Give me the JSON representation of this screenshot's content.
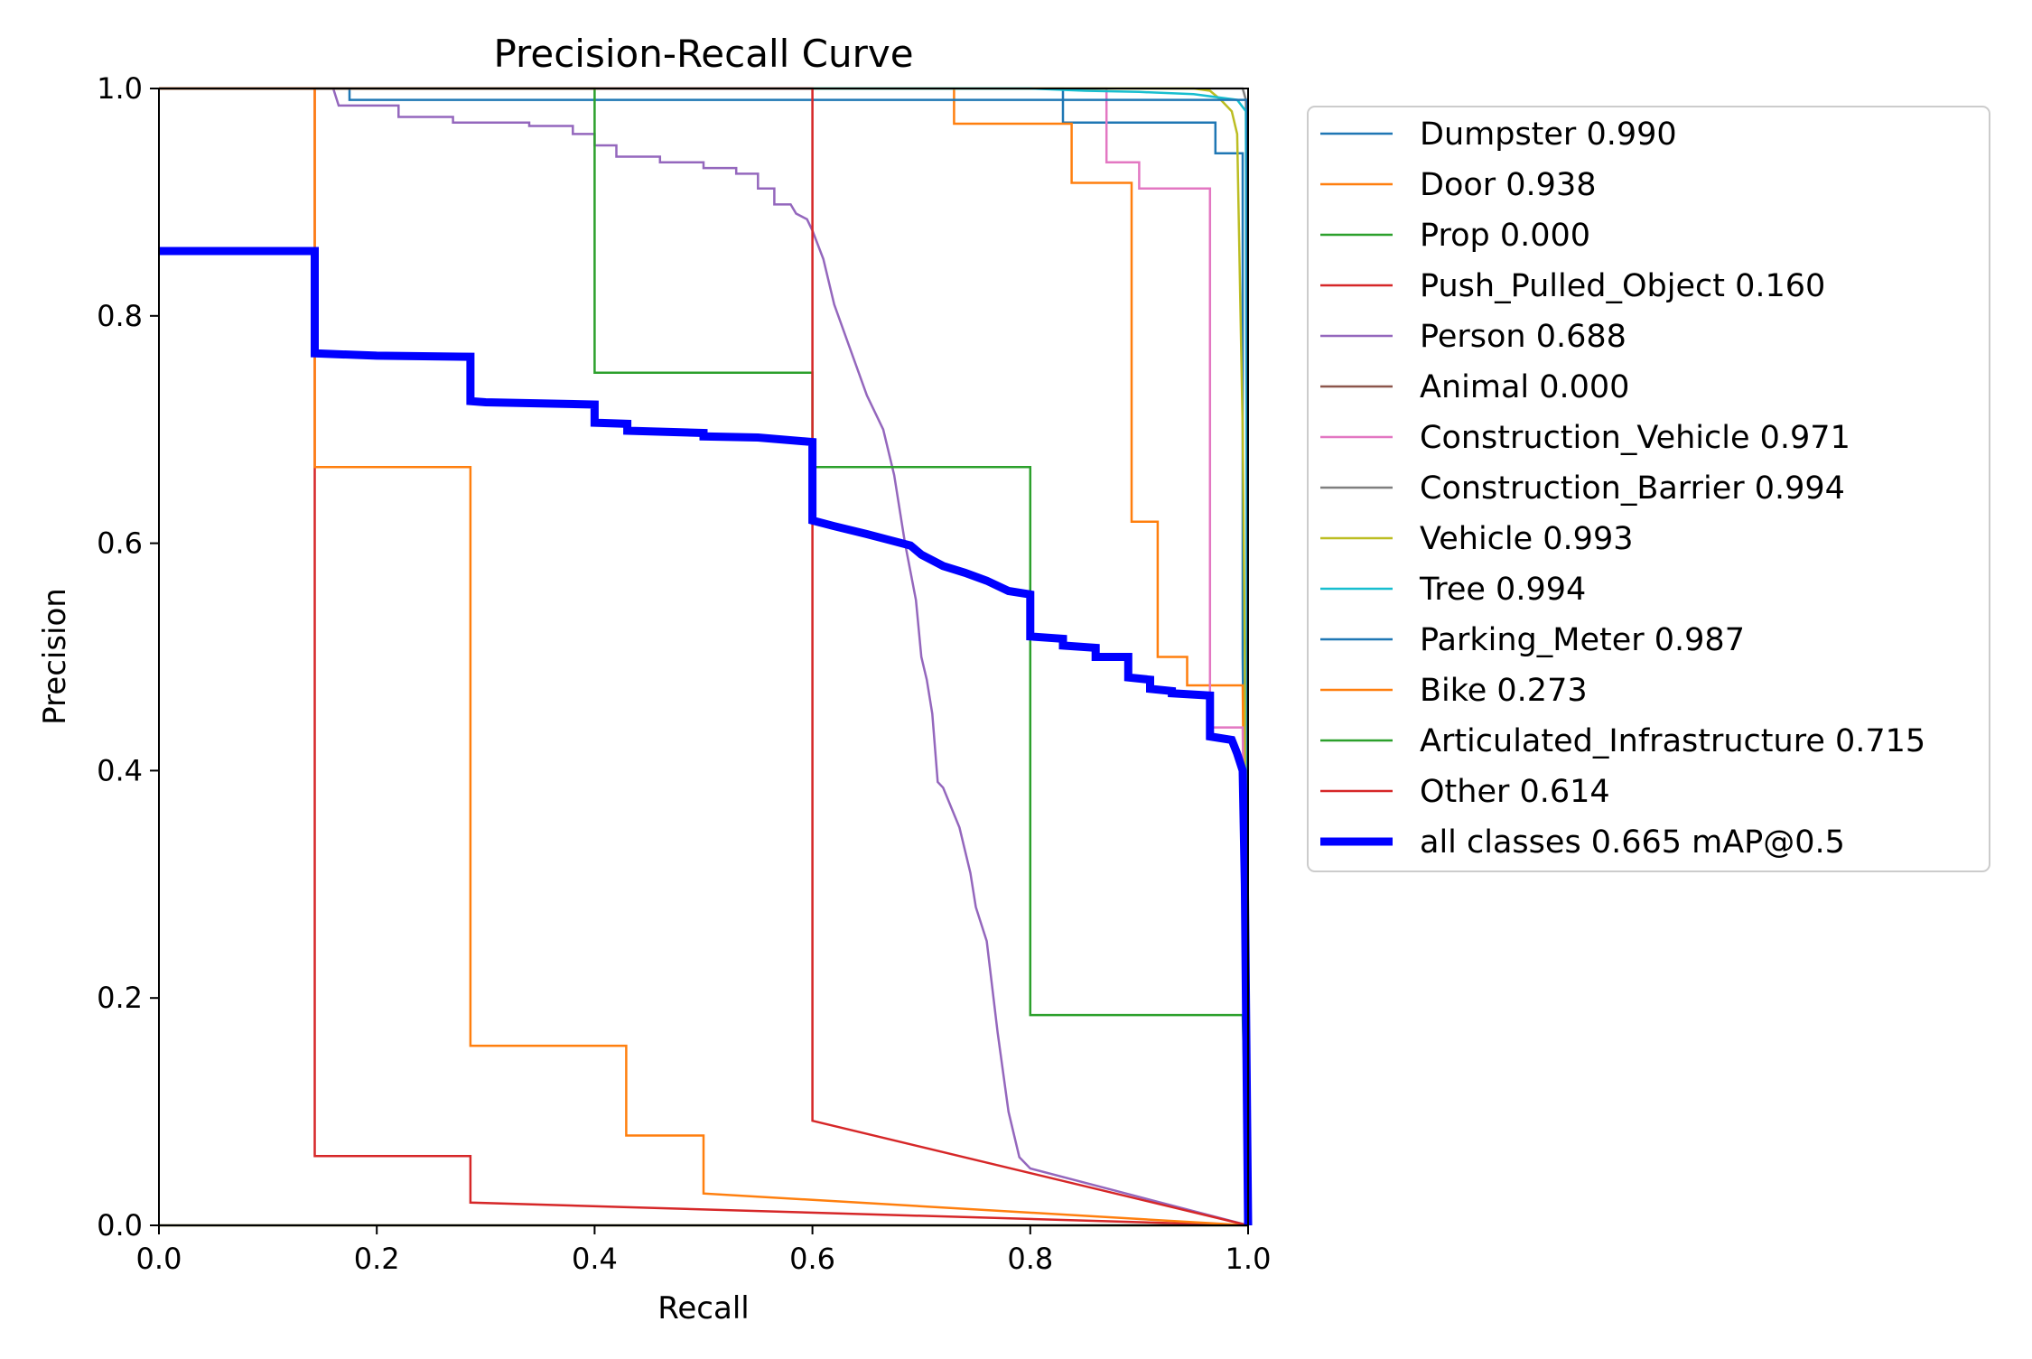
{
  "chart_data": {
    "type": "line",
    "title": "Precision-Recall Curve",
    "xlabel": "Recall",
    "ylabel": "Precision",
    "xlim": [
      0.0,
      1.0
    ],
    "ylim": [
      0.0,
      1.0
    ],
    "xticks": [
      "0.0",
      "0.2",
      "0.4",
      "0.6",
      "0.8",
      "1.0"
    ],
    "yticks": [
      "0.0",
      "0.2",
      "0.4",
      "0.6",
      "0.8",
      "1.0"
    ],
    "grid": false,
    "legend_position": "outside-right",
    "series": [
      {
        "name": "Dumpster 0.990",
        "color": "#1f77b4",
        "width": "thin",
        "points": [
          [
            0,
            1
          ],
          [
            0.83,
            1
          ],
          [
            0.83,
            0.97
          ],
          [
            0.97,
            0.97
          ],
          [
            0.97,
            0.943
          ],
          [
            0.995,
            0.943
          ],
          [
            0.995,
            0.5
          ],
          [
            1,
            0
          ]
        ]
      },
      {
        "name": "Door 0.938",
        "color": "#ff7f0e",
        "width": "thin",
        "points": [
          [
            0,
            1
          ],
          [
            0.73,
            1
          ],
          [
            0.73,
            0.969
          ],
          [
            0.838,
            0.969
          ],
          [
            0.838,
            0.917
          ],
          [
            0.893,
            0.917
          ],
          [
            0.893,
            0.619
          ],
          [
            0.917,
            0.619
          ],
          [
            0.917,
            0.5
          ],
          [
            0.944,
            0.5
          ],
          [
            0.944,
            0.475
          ],
          [
            0.995,
            0.475
          ],
          [
            1,
            0
          ]
        ]
      },
      {
        "name": "Prop 0.000",
        "color": "#2ca02c",
        "width": "thin",
        "points": [
          [
            0,
            0
          ],
          [
            1,
            0
          ]
        ]
      },
      {
        "name": "Push_Pulled_Object 0.160",
        "color": "#d62728",
        "width": "thin",
        "points": [
          [
            0,
            1
          ],
          [
            0.143,
            1
          ],
          [
            0.143,
            0.061
          ],
          [
            0.286,
            0.061
          ],
          [
            0.286,
            0.02
          ],
          [
            1,
            0
          ]
        ]
      },
      {
        "name": "Person 0.688",
        "color": "#9467bd",
        "width": "thin",
        "points": [
          [
            0,
            1
          ],
          [
            0.16,
            1
          ],
          [
            0.165,
            0.985
          ],
          [
            0.22,
            0.985
          ],
          [
            0.22,
            0.975
          ],
          [
            0.27,
            0.975
          ],
          [
            0.27,
            0.97
          ],
          [
            0.34,
            0.97
          ],
          [
            0.34,
            0.967
          ],
          [
            0.38,
            0.967
          ],
          [
            0.38,
            0.96
          ],
          [
            0.4,
            0.96
          ],
          [
            0.4,
            0.95
          ],
          [
            0.42,
            0.95
          ],
          [
            0.42,
            0.94
          ],
          [
            0.46,
            0.94
          ],
          [
            0.46,
            0.935
          ],
          [
            0.5,
            0.935
          ],
          [
            0.5,
            0.93
          ],
          [
            0.53,
            0.93
          ],
          [
            0.53,
            0.925
          ],
          [
            0.55,
            0.925
          ],
          [
            0.55,
            0.912
          ],
          [
            0.565,
            0.912
          ],
          [
            0.565,
            0.898
          ],
          [
            0.58,
            0.898
          ],
          [
            0.585,
            0.89
          ],
          [
            0.595,
            0.885
          ],
          [
            0.6,
            0.875
          ],
          [
            0.61,
            0.85
          ],
          [
            0.62,
            0.81
          ],
          [
            0.635,
            0.77
          ],
          [
            0.65,
            0.73
          ],
          [
            0.665,
            0.7
          ],
          [
            0.675,
            0.66
          ],
          [
            0.685,
            0.6
          ],
          [
            0.695,
            0.55
          ],
          [
            0.7,
            0.5
          ],
          [
            0.705,
            0.48
          ],
          [
            0.71,
            0.45
          ],
          [
            0.715,
            0.39
          ],
          [
            0.72,
            0.385
          ],
          [
            0.735,
            0.35
          ],
          [
            0.745,
            0.31
          ],
          [
            0.75,
            0.28
          ],
          [
            0.76,
            0.25
          ],
          [
            0.77,
            0.17
          ],
          [
            0.78,
            0.1
          ],
          [
            0.785,
            0.08
          ],
          [
            0.79,
            0.06
          ],
          [
            0.8,
            0.05
          ],
          [
            1,
            0
          ]
        ]
      },
      {
        "name": "Animal 0.000",
        "color": "#8c564b",
        "width": "thin",
        "points": [
          [
            0,
            0
          ],
          [
            1,
            0
          ]
        ]
      },
      {
        "name": "Construction_Vehicle 0.971",
        "color": "#e377c2",
        "width": "thin",
        "points": [
          [
            0,
            1
          ],
          [
            0.87,
            1
          ],
          [
            0.87,
            0.935
          ],
          [
            0.9,
            0.935
          ],
          [
            0.9,
            0.912
          ],
          [
            0.965,
            0.912
          ],
          [
            0.965,
            0.438
          ],
          [
            0.995,
            0.438
          ],
          [
            1,
            0
          ]
        ]
      },
      {
        "name": "Construction_Barrier 0.994",
        "color": "#7f7f7f",
        "width": "thin",
        "points": [
          [
            0,
            1
          ],
          [
            0.995,
            1
          ],
          [
            0.998,
            0.99
          ],
          [
            1,
            0
          ]
        ]
      },
      {
        "name": "Vehicle 0.993",
        "color": "#bcbd22",
        "width": "thin",
        "points": [
          [
            0,
            1
          ],
          [
            0.95,
            1
          ],
          [
            0.965,
            0.998
          ],
          [
            0.975,
            0.99
          ],
          [
            0.985,
            0.98
          ],
          [
            0.99,
            0.96
          ],
          [
            0.995,
            0.7
          ],
          [
            0.997,
            0.5
          ],
          [
            1,
            0
          ]
        ]
      },
      {
        "name": "Tree 0.994",
        "color": "#17becf",
        "width": "thin",
        "points": [
          [
            0,
            1
          ],
          [
            0.8,
            1
          ],
          [
            0.85,
            0.998
          ],
          [
            0.9,
            0.997
          ],
          [
            0.95,
            0.995
          ],
          [
            0.99,
            0.99
          ],
          [
            0.998,
            0.98
          ],
          [
            1,
            0
          ]
        ]
      },
      {
        "name": "Parking_Meter 0.987",
        "color": "#1f77b4",
        "width": "thin",
        "points": [
          [
            0,
            1
          ],
          [
            0.175,
            1
          ],
          [
            0.175,
            0.99
          ],
          [
            0.999,
            0.99
          ],
          [
            1,
            0
          ]
        ]
      },
      {
        "name": "Bike 0.273",
        "color": "#ff7f0e",
        "width": "thin",
        "points": [
          [
            0,
            1
          ],
          [
            0.143,
            1
          ],
          [
            0.143,
            0.667
          ],
          [
            0.286,
            0.667
          ],
          [
            0.286,
            0.158
          ],
          [
            0.429,
            0.158
          ],
          [
            0.429,
            0.079
          ],
          [
            0.5,
            0.079
          ],
          [
            0.5,
            0.028
          ],
          [
            1,
            0
          ]
        ]
      },
      {
        "name": "Articulated_Infrastructure 0.715",
        "color": "#2ca02c",
        "width": "thin",
        "points": [
          [
            0,
            1
          ],
          [
            0.4,
            1
          ],
          [
            0.4,
            0.75
          ],
          [
            0.6,
            0.75
          ],
          [
            0.6,
            0.667
          ],
          [
            0.8,
            0.667
          ],
          [
            0.8,
            0.185
          ],
          [
            0.995,
            0.185
          ],
          [
            1,
            0
          ]
        ]
      },
      {
        "name": "Other 0.614",
        "color": "#d62728",
        "width": "thin",
        "points": [
          [
            0,
            1
          ],
          [
            0.6,
            1
          ],
          [
            0.6,
            0.092
          ],
          [
            1,
            0
          ]
        ]
      },
      {
        "name": "all classes 0.665 mAP@0.5",
        "color": "#0000ff",
        "width": "thick",
        "points": [
          [
            0,
            0.857
          ],
          [
            0.143,
            0.857
          ],
          [
            0.143,
            0.767
          ],
          [
            0.2,
            0.765
          ],
          [
            0.286,
            0.764
          ],
          [
            0.286,
            0.725
          ],
          [
            0.3,
            0.724
          ],
          [
            0.4,
            0.722
          ],
          [
            0.4,
            0.706
          ],
          [
            0.43,
            0.705
          ],
          [
            0.43,
            0.699
          ],
          [
            0.5,
            0.697
          ],
          [
            0.5,
            0.694
          ],
          [
            0.55,
            0.693
          ],
          [
            0.6,
            0.689
          ],
          [
            0.6,
            0.62
          ],
          [
            0.62,
            0.615
          ],
          [
            0.65,
            0.608
          ],
          [
            0.67,
            0.603
          ],
          [
            0.69,
            0.598
          ],
          [
            0.7,
            0.59
          ],
          [
            0.72,
            0.58
          ],
          [
            0.74,
            0.574
          ],
          [
            0.76,
            0.567
          ],
          [
            0.78,
            0.558
          ],
          [
            0.8,
            0.555
          ],
          [
            0.8,
            0.518
          ],
          [
            0.83,
            0.516
          ],
          [
            0.83,
            0.51
          ],
          [
            0.86,
            0.508
          ],
          [
            0.86,
            0.5
          ],
          [
            0.89,
            0.5
          ],
          [
            0.89,
            0.482
          ],
          [
            0.91,
            0.48
          ],
          [
            0.91,
            0.472
          ],
          [
            0.93,
            0.47
          ],
          [
            0.93,
            0.468
          ],
          [
            0.965,
            0.466
          ],
          [
            0.965,
            0.43
          ],
          [
            0.985,
            0.427
          ],
          [
            0.99,
            0.415
          ],
          [
            0.995,
            0.4
          ],
          [
            0.997,
            0.3
          ],
          [
            1,
            0
          ]
        ]
      }
    ]
  }
}
